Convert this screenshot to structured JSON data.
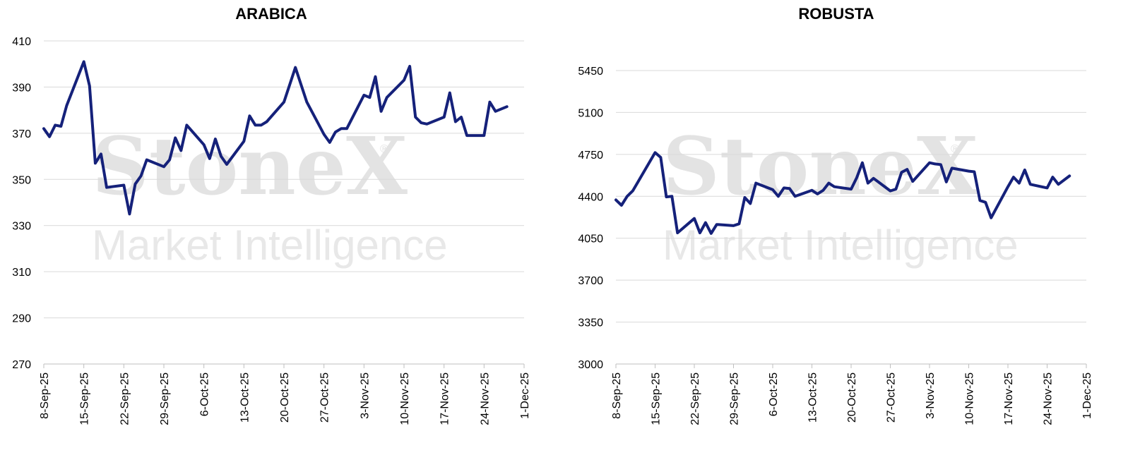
{
  "watermark": {
    "brand": "StoneX",
    "registered": "®",
    "tagline": "Market Intelligence"
  },
  "chart_data": [
    {
      "type": "line",
      "title": "ARABICA",
      "xlabel": "",
      "ylabel": "",
      "ylim": [
        270,
        410
      ],
      "yticks": [
        270,
        290,
        310,
        330,
        350,
        370,
        390,
        410
      ],
      "x_range": [
        "2025-09-08",
        "2025-12-01"
      ],
      "x_tick_labels": [
        "8-Sep-25",
        "15-Sep-25",
        "22-Sep-25",
        "29-Sep-25",
        "6-Oct-25",
        "13-Oct-25",
        "20-Oct-25",
        "27-Oct-25",
        "3-Nov-25",
        "10-Nov-25",
        "17-Nov-25",
        "24-Nov-25",
        "1-Dec-25"
      ],
      "grid": true,
      "series": [
        {
          "points": [
            [
              "2025-09-08",
              372
            ],
            [
              "2025-09-09",
              368.5
            ],
            [
              "2025-09-10",
              373.5
            ],
            [
              "2025-09-11",
              373
            ],
            [
              "2025-09-12",
              382
            ],
            [
              "2025-09-15",
              401
            ],
            [
              "2025-09-16",
              390.5
            ],
            [
              "2025-09-17",
              357
            ],
            [
              "2025-09-18",
              361
            ],
            [
              "2025-09-19",
              346.5
            ],
            [
              "2025-09-22",
              347.5
            ],
            [
              "2025-09-23",
              335
            ],
            [
              "2025-09-24",
              348
            ],
            [
              "2025-09-25",
              351.5
            ],
            [
              "2025-09-26",
              358.5
            ],
            [
              "2025-09-29",
              355.5
            ],
            [
              "2025-09-30",
              358.5
            ],
            [
              "2025-10-01",
              368
            ],
            [
              "2025-10-02",
              362.5
            ],
            [
              "2025-10-03",
              373.5
            ],
            [
              "2025-10-06",
              365
            ],
            [
              "2025-10-07",
              359
            ],
            [
              "2025-10-08",
              367.5
            ],
            [
              "2025-10-09",
              360
            ],
            [
              "2025-10-10",
              356.5
            ],
            [
              "2025-10-13",
              366.5
            ],
            [
              "2025-10-14",
              377.5
            ],
            [
              "2025-10-15",
              373.5
            ],
            [
              "2025-10-16",
              373.5
            ],
            [
              "2025-10-17",
              375
            ],
            [
              "2025-10-20",
              383.5
            ],
            [
              "2025-10-21",
              391
            ],
            [
              "2025-10-22",
              398.5
            ],
            [
              "2025-10-23",
              391
            ],
            [
              "2025-10-24",
              383.5
            ],
            [
              "2025-10-27",
              369.5
            ],
            [
              "2025-10-28",
              366
            ],
            [
              "2025-10-29",
              370.5
            ],
            [
              "2025-10-30",
              372
            ],
            [
              "2025-10-31",
              372
            ],
            [
              "2025-11-03",
              386.5
            ],
            [
              "2025-11-04",
              385.5
            ],
            [
              "2025-11-05",
              394.5
            ],
            [
              "2025-11-06",
              379.5
            ],
            [
              "2025-11-07",
              385.5
            ],
            [
              "2025-11-10",
              393
            ],
            [
              "2025-11-11",
              399
            ],
            [
              "2025-11-12",
              377
            ],
            [
              "2025-11-13",
              374.5
            ],
            [
              "2025-11-14",
              374
            ],
            [
              "2025-11-17",
              377
            ],
            [
              "2025-11-18",
              387.5
            ],
            [
              "2025-11-19",
              375
            ],
            [
              "2025-11-20",
              377
            ],
            [
              "2025-11-21",
              369
            ],
            [
              "2025-11-24",
              369
            ],
            [
              "2025-11-25",
              383.5
            ],
            [
              "2025-11-26",
              379.5
            ],
            [
              "2025-11-28",
              381.5
            ]
          ]
        }
      ]
    },
    {
      "type": "line",
      "title": "ROBUSTA",
      "xlabel": "",
      "ylabel": "",
      "ylim": [
        3000,
        5450
      ],
      "yticks": [
        3000,
        3350,
        3700,
        4050,
        4400,
        4750,
        5100,
        5450
      ],
      "x_range": [
        "2025-09-08",
        "2025-12-01"
      ],
      "x_tick_labels": [
        "8-Sep-25",
        "15-Sep-25",
        "22-Sep-25",
        "29-Sep-25",
        "6-Oct-25",
        "13-Oct-25",
        "20-Oct-25",
        "27-Oct-25",
        "3-Nov-25",
        "10-Nov-25",
        "17-Nov-25",
        "24-Nov-25",
        "1-Dec-25"
      ],
      "grid": true,
      "series": [
        {
          "points": [
            [
              "2025-09-08",
              4370
            ],
            [
              "2025-09-09",
              4325
            ],
            [
              "2025-09-10",
              4400
            ],
            [
              "2025-09-11",
              4445
            ],
            [
              "2025-09-12",
              4525
            ],
            [
              "2025-09-15",
              4765
            ],
            [
              "2025-09-16",
              4725
            ],
            [
              "2025-09-17",
              4395
            ],
            [
              "2025-09-18",
              4400
            ],
            [
              "2025-09-19",
              4095
            ],
            [
              "2025-09-22",
              4215
            ],
            [
              "2025-09-23",
              4095
            ],
            [
              "2025-09-24",
              4180
            ],
            [
              "2025-09-25",
              4090
            ],
            [
              "2025-09-26",
              4165
            ],
            [
              "2025-09-29",
              4155
            ],
            [
              "2025-09-30",
              4170
            ],
            [
              "2025-10-01",
              4390
            ],
            [
              "2025-10-02",
              4340
            ],
            [
              "2025-10-03",
              4510
            ],
            [
              "2025-10-06",
              4455
            ],
            [
              "2025-10-07",
              4400
            ],
            [
              "2025-10-08",
              4470
            ],
            [
              "2025-10-09",
              4465
            ],
            [
              "2025-10-10",
              4400
            ],
            [
              "2025-10-13",
              4450
            ],
            [
              "2025-10-14",
              4420
            ],
            [
              "2025-10-15",
              4450
            ],
            [
              "2025-10-16",
              4510
            ],
            [
              "2025-10-17",
              4480
            ],
            [
              "2025-10-20",
              4460
            ],
            [
              "2025-10-21",
              4555
            ],
            [
              "2025-10-22",
              4680
            ],
            [
              "2025-10-23",
              4510
            ],
            [
              "2025-10-24",
              4550
            ],
            [
              "2025-10-27",
              4445
            ],
            [
              "2025-10-28",
              4460
            ],
            [
              "2025-10-29",
              4600
            ],
            [
              "2025-10-30",
              4625
            ],
            [
              "2025-10-31",
              4525
            ],
            [
              "2025-11-03",
              4680
            ],
            [
              "2025-11-04",
              4670
            ],
            [
              "2025-11-05",
              4665
            ],
            [
              "2025-11-06",
              4520
            ],
            [
              "2025-11-07",
              4635
            ],
            [
              "2025-11-10",
              4610
            ],
            [
              "2025-11-11",
              4605
            ],
            [
              "2025-11-12",
              4365
            ],
            [
              "2025-11-13",
              4350
            ],
            [
              "2025-11-14",
              4220
            ],
            [
              "2025-11-17",
              4480
            ],
            [
              "2025-11-18",
              4560
            ],
            [
              "2025-11-19",
              4510
            ],
            [
              "2025-11-20",
              4620
            ],
            [
              "2025-11-21",
              4500
            ],
            [
              "2025-11-24",
              4470
            ],
            [
              "2025-11-25",
              4560
            ],
            [
              "2025-11-26",
              4500
            ],
            [
              "2025-11-28",
              4570
            ]
          ]
        }
      ]
    }
  ]
}
